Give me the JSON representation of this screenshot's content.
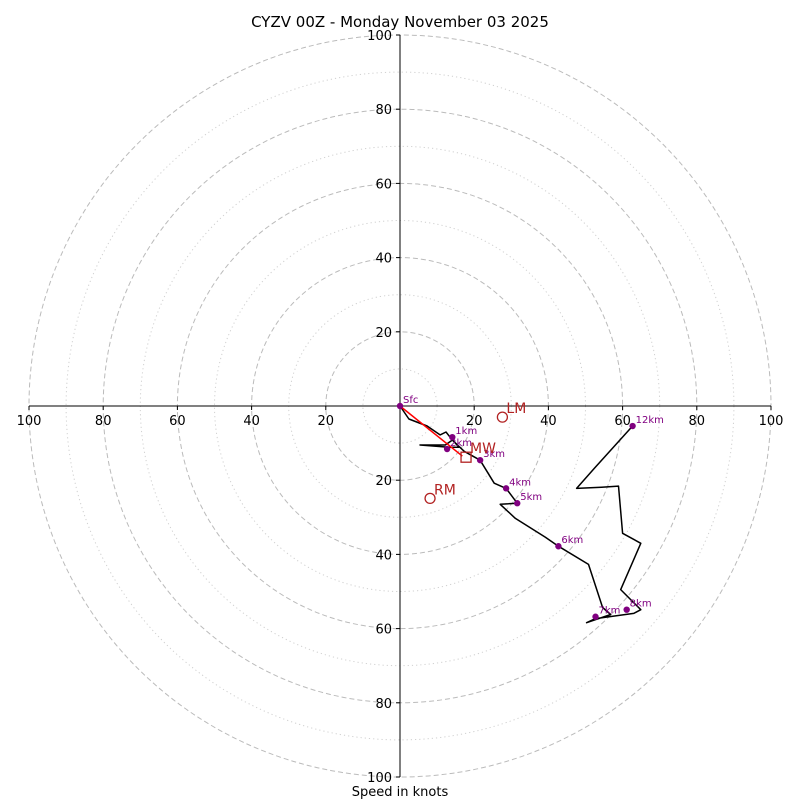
{
  "chart_data": {
    "type": "hodograph",
    "title": "CYZV 00Z - Monday November 03 2025",
    "xlabel": "Speed in knots",
    "range_knots": 100,
    "major_rings": [
      20,
      40,
      60,
      80,
      100
    ],
    "minor_rings": [
      10,
      30,
      50,
      70,
      90
    ],
    "axis_ticks": {
      "positive_x": [
        "20",
        "40",
        "60",
        "80",
        "100"
      ],
      "negative_x": [
        "100",
        "80",
        "60",
        "40",
        "20"
      ],
      "positive_y": [
        "20",
        "40",
        "60",
        "80",
        "100"
      ],
      "negative_y": [
        "20",
        "40",
        "60",
        "80",
        "100"
      ],
      "positive_x_values": [
        20,
        40,
        60,
        80,
        100
      ],
      "negative_x_values": [
        -100,
        -80,
        -60,
        -40,
        -20
      ],
      "positive_y_values": [
        20,
        40,
        60,
        80,
        100
      ],
      "negative_y_values": [
        -20,
        -40,
        -60,
        -80,
        -100
      ]
    },
    "trace": [
      [
        0,
        0
      ],
      [
        2.4,
        -3.5
      ],
      [
        7.3,
        -5.4
      ],
      [
        10.8,
        -7.8
      ],
      [
        12.4,
        -7.0
      ],
      [
        13.5,
        -8.4
      ],
      [
        15.9,
        -11.1
      ],
      [
        13.2,
        -11.1
      ],
      [
        5.4,
        -10.5
      ],
      [
        12.2,
        -10.5
      ],
      [
        14.1,
        -9.2
      ],
      [
        17.3,
        -12.2
      ],
      [
        21.6,
        -14.6
      ],
      [
        25.4,
        -20.8
      ],
      [
        28.6,
        -22.2
      ],
      [
        31.6,
        -26.2
      ],
      [
        27.0,
        -26.5
      ],
      [
        31.1,
        -30.3
      ],
      [
        39.2,
        -35.4
      ],
      [
        42.7,
        -37.8
      ],
      [
        50.8,
        -42.7
      ],
      [
        54.6,
        -54.3
      ],
      [
        56.8,
        -56.2
      ],
      [
        50.3,
        -58.4
      ],
      [
        52.7,
        -57.3
      ],
      [
        63.0,
        -55.9
      ],
      [
        64.9,
        -54.9
      ],
      [
        59.5,
        -49.5
      ],
      [
        64.9,
        -37.0
      ],
      [
        60.0,
        -34.3
      ],
      [
        58.9,
        -21.6
      ],
      [
        54.3,
        -21.9
      ],
      [
        47.6,
        -22.2
      ],
      [
        52.4,
        -16.8
      ],
      [
        62.7,
        -5.4
      ]
    ],
    "height_labels": [
      {
        "label": "Sfc",
        "u": 0,
        "v": 0
      },
      {
        "label": "1km",
        "u": 14.1,
        "v": -8.4
      },
      {
        "label": "2km",
        "u": 12.7,
        "v": -11.6
      },
      {
        "label": "3km",
        "u": 21.6,
        "v": -14.6
      },
      {
        "label": "4km",
        "u": 28.6,
        "v": -22.2
      },
      {
        "label": "5km",
        "u": 31.6,
        "v": -26.2
      },
      {
        "label": "6km",
        "u": 42.7,
        "v": -37.8
      },
      {
        "label": "7km",
        "u": 52.7,
        "v": -56.8
      },
      {
        "label": "8km",
        "u": 61.1,
        "v": -54.9
      },
      {
        "label": "12km",
        "u": 62.7,
        "v": -5.4
      }
    ],
    "mean_wind_line": [
      [
        0,
        0
      ],
      [
        16.8,
        -13.5
      ]
    ],
    "motion_markers": [
      {
        "label": "LM",
        "shape": "circle",
        "u": 27.6,
        "v": -3.0
      },
      {
        "label": "RM",
        "shape": "circle",
        "u": 8.1,
        "v": -24.9
      },
      {
        "label": "MW",
        "shape": "square",
        "u": 17.8,
        "v": -13.8
      }
    ],
    "colors": {
      "trace": "#000000",
      "height_points": "#800080",
      "motion": "#b22222",
      "mean_wind_line": "#ff0000",
      "rings": "#bbbbbb"
    }
  }
}
